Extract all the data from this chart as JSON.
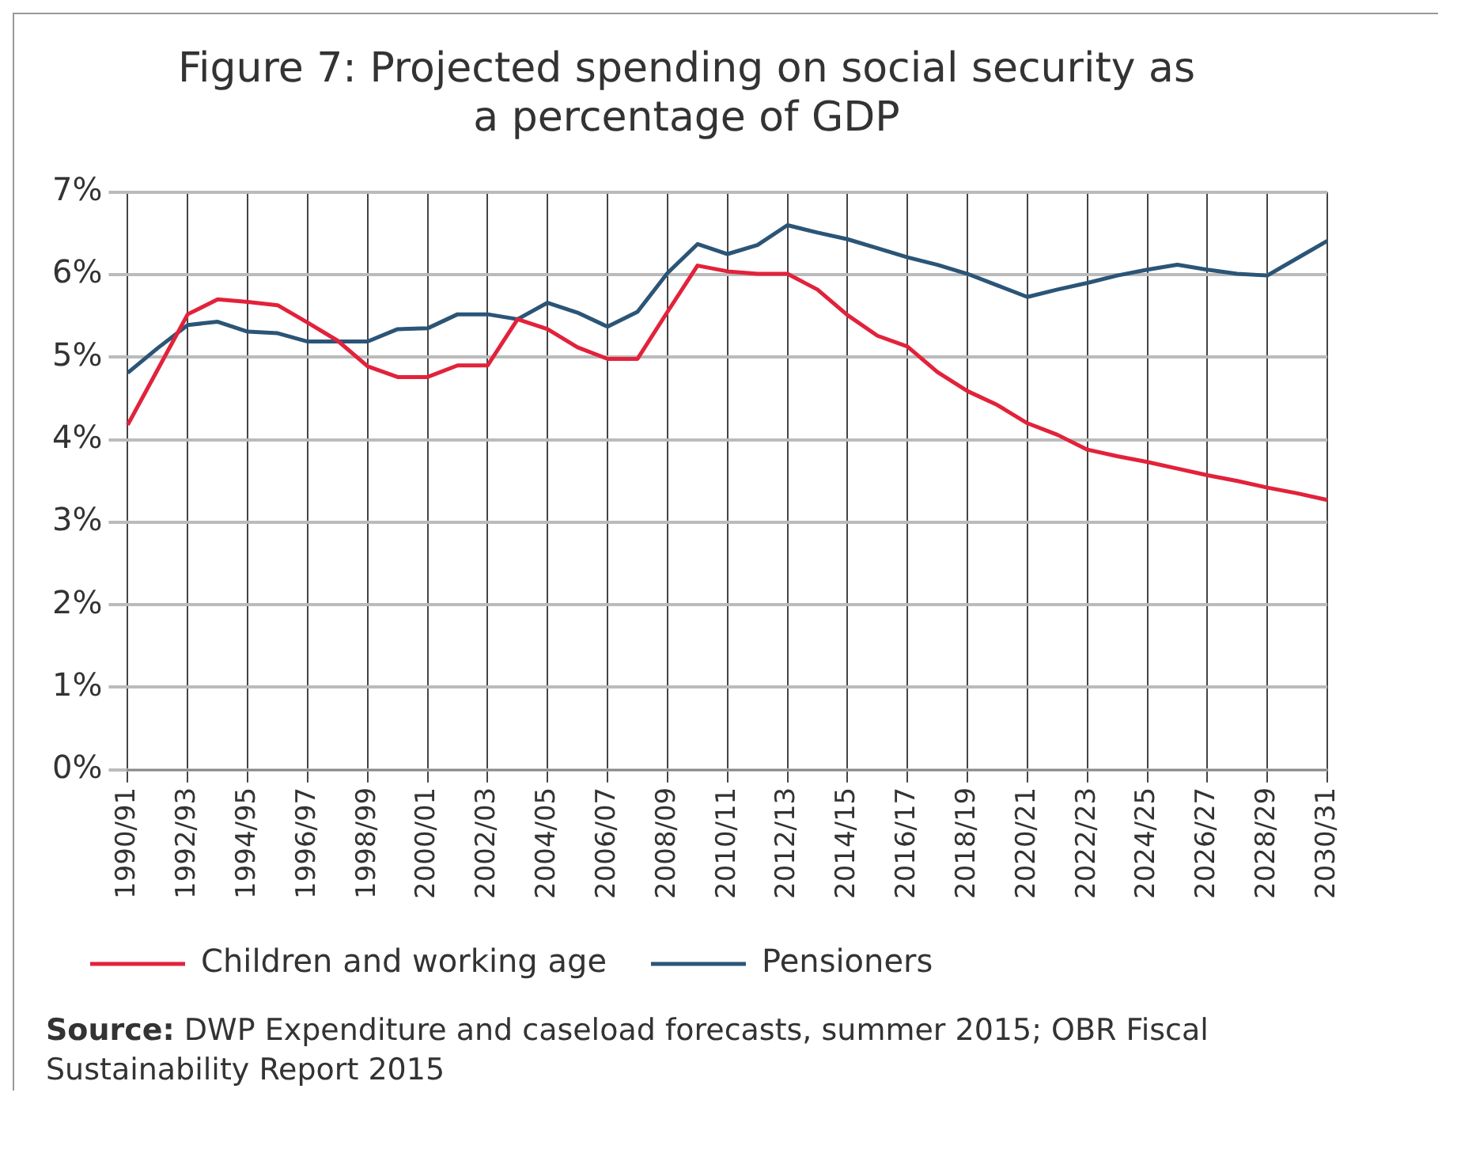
{
  "chart_data": {
    "type": "line",
    "title": "Figure 7: Projected spending on social security as a percentage of GDP",
    "categories": [
      "1990/91",
      null,
      "1992/93",
      null,
      "1994/95",
      null,
      "1996/97",
      null,
      "1998/99",
      null,
      "2000/01",
      null,
      "2002/03",
      null,
      "2004/05",
      null,
      "2006/07",
      null,
      "2008/09",
      null,
      "2010/11",
      null,
      "2012/13",
      null,
      "2014/15",
      null,
      "2016/17",
      null,
      "2018/19",
      null,
      "2020/21",
      null,
      "2022/23",
      null,
      "2024/25",
      null,
      "2026/27",
      null,
      "2028/29",
      null,
      "2030/31"
    ],
    "series": [
      {
        "name": "Children and working age",
        "color": "#e2223b",
        "values": [
          4.18,
          4.85,
          5.52,
          5.7,
          5.67,
          5.63,
          5.42,
          5.2,
          4.89,
          4.76,
          4.76,
          4.9,
          4.9,
          5.46,
          5.34,
          5.12,
          4.98,
          4.98,
          5.55,
          6.11,
          6.04,
          6.01,
          6.01,
          5.82,
          5.51,
          5.26,
          5.13,
          4.82,
          4.59,
          4.42,
          4.2,
          4.06,
          3.88,
          3.8,
          3.73,
          3.65,
          3.57,
          3.5,
          3.42,
          3.35,
          3.27
        ]
      },
      {
        "name": "Pensioners",
        "color": "#2b5577",
        "values": [
          4.81,
          5.11,
          5.39,
          5.43,
          5.31,
          5.29,
          5.19,
          5.19,
          5.19,
          5.34,
          5.35,
          5.52,
          5.52,
          5.46,
          5.66,
          5.54,
          5.37,
          5.55,
          6.02,
          6.37,
          6.25,
          6.36,
          6.6,
          6.51,
          6.43,
          6.32,
          6.21,
          6.12,
          6.01,
          5.87,
          5.73,
          5.82,
          5.9,
          5.99,
          6.06,
          6.12,
          6.06,
          6.01,
          5.99,
          6.2,
          6.41
        ]
      }
    ],
    "ylim": [
      0,
      7
    ],
    "yticks": [
      {
        "value": 0,
        "label": "0%"
      },
      {
        "value": 1,
        "label": "1%"
      },
      {
        "value": 2,
        "label": "2%"
      },
      {
        "value": 3,
        "label": "3%"
      },
      {
        "value": 4,
        "label": "4%"
      },
      {
        "value": 5,
        "label": "5%"
      },
      {
        "value": 6,
        "label": "6%"
      },
      {
        "value": 7,
        "label": "7%"
      }
    ],
    "grid": true,
    "legend": "bottom",
    "marker": "none",
    "line_style": "solid",
    "annotations": [
      "Source: DWP Expenditure and caseload forecasts, summer 2015; OBR Fiscal Sustainability Report 2015"
    ]
  }
}
